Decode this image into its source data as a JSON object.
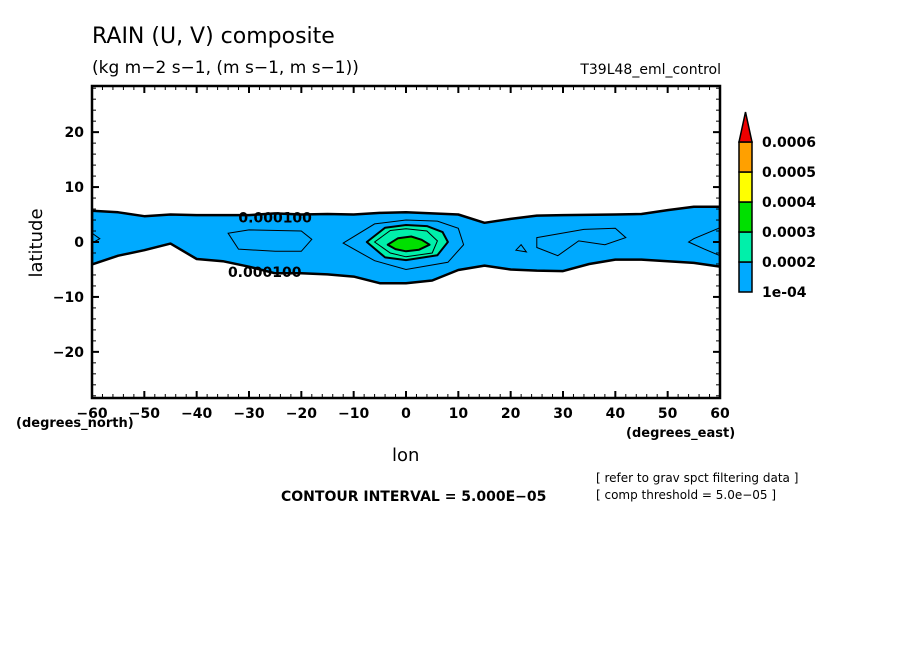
{
  "header": {
    "title": "RAIN (U, V) composite",
    "units": "(kg m−2 s−1, (m s−1, m s−1))",
    "experiment": "T39L48_eml_control"
  },
  "footer": {
    "contour_interval": "CONTOUR INTERVAL = 5.000E−05",
    "note_1": "[ refer to grav spct filtering data ]",
    "note_2": "[ comp threshold = 5.0e−05 ]"
  },
  "chart_data": {
    "type": "heatmap",
    "subtype": "filled-contour",
    "title": "RAIN (U, V) composite",
    "subtitle": "(kg m−2 s−1, (m s−1, m s−1))",
    "experiment_label": "T39L48_eml_control",
    "xlabel": "lon",
    "xunits": "(degrees_east)",
    "ylabel": "latitude",
    "yunits": "(degrees_north)",
    "xlim": [
      -60,
      60
    ],
    "ylim": [
      -28.4,
      28.4
    ],
    "xticks": [
      -60,
      -50,
      -40,
      -30,
      -20,
      -10,
      0,
      10,
      20,
      30,
      40,
      50,
      60
    ],
    "xtick_labels": [
      "−60",
      "−50",
      "−40",
      "−30",
      "−20",
      "−10",
      "0",
      "10",
      "20",
      "30",
      "40",
      "50",
      "60"
    ],
    "yticks": [
      20,
      10,
      0,
      -10,
      -20
    ],
    "ytick_labels": [
      "20",
      "10",
      "0",
      "−10",
      "−20"
    ],
    "x_minor_step": 2,
    "y_minor_step": 2,
    "contour_interval": 5e-05,
    "contour_labels": [
      {
        "text": "0.000100",
        "lon": -25,
        "lat": 4.5
      },
      {
        "text": "0.000100",
        "lon": -27,
        "lat": -5.5
      }
    ],
    "colorbar": {
      "levels": [
        0.0001,
        0.0002,
        0.0003,
        0.0004,
        0.0005,
        0.0006
      ],
      "labels": [
        "1e-04",
        "0.0002",
        "0.0003",
        "0.0004",
        "0.0005",
        "0.0006"
      ],
      "colors": [
        "#00aaff",
        "#00f0aa",
        "#00e000",
        "#ffff00",
        "#ffa000",
        "#ee0000"
      ],
      "extend": "max"
    },
    "regions": [
      {
        "name": "rain-band-ge-1e-04",
        "level": 0.0001,
        "color": "#00aaff",
        "outline": [
          [
            -60,
            5.7
          ],
          [
            -55,
            5.4
          ],
          [
            -50,
            4.7
          ],
          [
            -45,
            5.0
          ],
          [
            -40,
            4.9
          ],
          [
            -30,
            4.9
          ],
          [
            -25,
            5.2
          ],
          [
            -20,
            5.0
          ],
          [
            -15,
            5.1
          ],
          [
            -10,
            5.0
          ],
          [
            -5,
            5.3
          ],
          [
            0,
            5.4
          ],
          [
            5,
            5.2
          ],
          [
            10,
            5.0
          ],
          [
            15,
            3.5
          ],
          [
            20,
            4.2
          ],
          [
            25,
            4.8
          ],
          [
            30,
            4.9
          ],
          [
            40,
            5.0
          ],
          [
            45,
            5.1
          ],
          [
            50,
            5.8
          ],
          [
            55,
            6.4
          ],
          [
            60,
            6.4
          ],
          [
            60,
            -4.5
          ],
          [
            55,
            -3.8
          ],
          [
            50,
            -3.5
          ],
          [
            45,
            -3.2
          ],
          [
            40,
            -3.2
          ],
          [
            35,
            -4.0
          ],
          [
            30,
            -5.3
          ],
          [
            25,
            -5.2
          ],
          [
            20,
            -5.0
          ],
          [
            15,
            -4.3
          ],
          [
            10,
            -5.1
          ],
          [
            5,
            -7.0
          ],
          [
            0,
            -7.5
          ],
          [
            -5,
            -7.5
          ],
          [
            -10,
            -6.3
          ],
          [
            -15,
            -5.9
          ],
          [
            -20,
            -5.7
          ],
          [
            -25,
            -5.7
          ],
          [
            -30,
            -4.5
          ],
          [
            -35,
            -3.5
          ],
          [
            -40,
            -3.1
          ],
          [
            -45,
            -0.3
          ],
          [
            -50,
            -1.5
          ],
          [
            -55,
            -2.5
          ],
          [
            -60,
            -4.1
          ]
        ]
      },
      {
        "name": "core-ge-2e-04",
        "level": 0.0002,
        "color": "#00f0aa",
        "outline": [
          [
            -7.5,
            0.0
          ],
          [
            -4,
            2.6
          ],
          [
            0,
            3.1
          ],
          [
            4,
            2.9
          ],
          [
            7,
            1.8
          ],
          [
            8,
            0.0
          ],
          [
            6,
            -2.4
          ],
          [
            0,
            -3.3
          ],
          [
            -4,
            -2.8
          ]
        ]
      },
      {
        "name": "core-ge-3e-04",
        "level": 0.0003,
        "color": "#00e000",
        "outline": [
          [
            -3.5,
            -0.5
          ],
          [
            -1.5,
            0.7
          ],
          [
            1,
            1.0
          ],
          [
            3,
            0.4
          ],
          [
            4.5,
            -0.5
          ],
          [
            2.5,
            -1.4
          ],
          [
            0,
            -1.7
          ],
          [
            -2,
            -1.3
          ]
        ]
      }
    ],
    "contour_lines": [
      {
        "name": "contour-1.5e-04-center",
        "level": 0.00015,
        "closed": true,
        "points": [
          [
            -12,
            -0.2
          ],
          [
            -6,
            3.3
          ],
          [
            0,
            4.0
          ],
          [
            6,
            3.8
          ],
          [
            10,
            2.5
          ],
          [
            11,
            -0.5
          ],
          [
            8,
            -3.7
          ],
          [
            0,
            -5.0
          ],
          [
            -6,
            -3.4
          ]
        ]
      },
      {
        "name": "contour-2.5e-04-center",
        "level": 0.00025,
        "closed": true,
        "points": [
          [
            -6,
            0.0
          ],
          [
            -3,
            2.1
          ],
          [
            0,
            2.4
          ],
          [
            4,
            2.0
          ],
          [
            6,
            0.2
          ],
          [
            5,
            -2.0
          ],
          [
            0,
            -2.7
          ],
          [
            -3,
            -2.0
          ]
        ]
      },
      {
        "name": "contour-1.5e-04-west",
        "level": 0.00015,
        "closed": true,
        "points": [
          [
            -34,
            1.6
          ],
          [
            -30,
            2.2
          ],
          [
            -20,
            2.0
          ],
          [
            -18,
            0.5
          ],
          [
            -20,
            -1.7
          ],
          [
            -25,
            -1.7
          ],
          [
            -32,
            -1.3
          ]
        ]
      },
      {
        "name": "contour-1.5e-04-east",
        "level": 0.00015,
        "closed": true,
        "points": [
          [
            25,
            0.8
          ],
          [
            34,
            2.3
          ],
          [
            40,
            2.5
          ],
          [
            42,
            0.8
          ],
          [
            38,
            -0.5
          ],
          [
            33,
            0.2
          ],
          [
            29,
            -2.5
          ],
          [
            25,
            -1.0
          ]
        ]
      },
      {
        "name": "contour-1.5e-04-small",
        "level": 0.00015,
        "closed": true,
        "points": [
          [
            21,
            -1.5
          ],
          [
            22,
            -0.5
          ],
          [
            23,
            -1.8
          ]
        ]
      },
      {
        "name": "contour-1.5e-04-edge-east",
        "level": 0.00015,
        "closed": false,
        "points": [
          [
            60,
            2.6
          ],
          [
            55,
            0.6
          ],
          [
            54,
            0.0
          ],
          [
            57,
            -1.3
          ],
          [
            60,
            -2.5
          ]
        ]
      },
      {
        "name": "contour-1.5e-04-edge-west",
        "level": 0.00015,
        "closed": false,
        "points": [
          [
            -60,
            1.6
          ],
          [
            -58.5,
            0.6
          ],
          [
            -60,
            -0.2
          ]
        ]
      }
    ]
  }
}
